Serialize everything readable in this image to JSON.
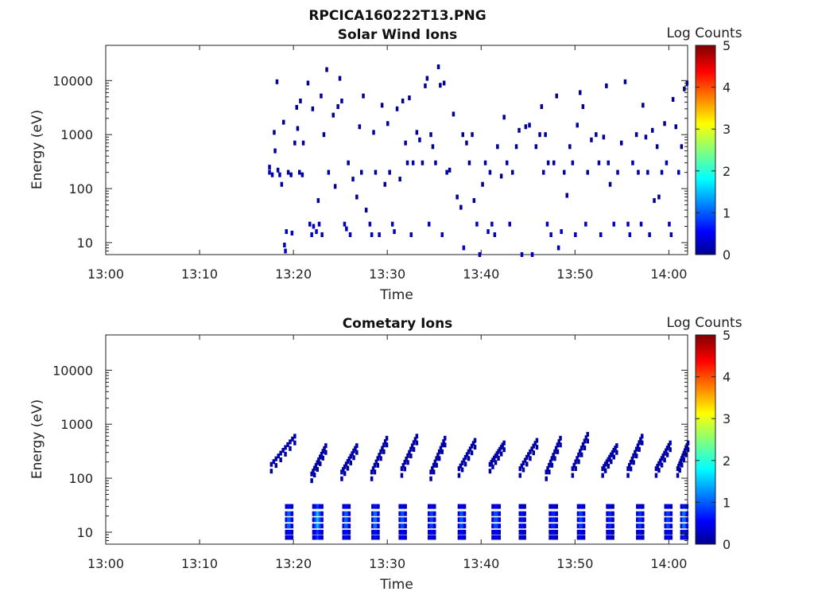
{
  "figure_title": "RPCICA160222T13.PNG",
  "chart_data": [
    {
      "type": "heatmap",
      "title": "Solar Wind Ions",
      "xlabel": "Time",
      "ylabel": "Energy (eV)",
      "x_ticks": [
        "13:00",
        "13:10",
        "13:20",
        "13:30",
        "13:40",
        "13:50",
        "14:00"
      ],
      "y_ticks": [
        "10",
        "100",
        "1000",
        "10000"
      ],
      "y_scale": "log",
      "x_range_min": [
        0,
        62
      ],
      "y_range_ev": [
        6,
        45000
      ],
      "colorbar": {
        "label": "Log Counts",
        "ticks": [
          "0",
          "1",
          "2",
          "3",
          "4",
          "5"
        ],
        "range": [
          0,
          5
        ],
        "colormap": "jet"
      },
      "grid": false,
      "points": [
        [
          17.3,
          250,
          0.3
        ],
        [
          17.3,
          200,
          0.3
        ],
        [
          17.6,
          180,
          0.2
        ],
        [
          17.8,
          1100,
          0.1
        ],
        [
          17.9,
          500,
          0.1
        ],
        [
          18.1,
          9500,
          0.1
        ],
        [
          18.2,
          220,
          0.2
        ],
        [
          18.4,
          180,
          0.2
        ],
        [
          18.6,
          120,
          0.1
        ],
        [
          18.8,
          1700,
          0.1
        ],
        [
          18.9,
          9,
          0.3
        ],
        [
          19.0,
          7,
          0.4
        ],
        [
          19.1,
          16,
          0.3
        ],
        [
          19.3,
          200,
          0.2
        ],
        [
          19.6,
          180,
          0.1
        ],
        [
          19.7,
          15,
          0.4
        ],
        [
          20.0,
          700,
          0.1
        ],
        [
          20.2,
          3200,
          0.1
        ],
        [
          20.3,
          1300,
          0.1
        ],
        [
          20.5,
          200,
          0.2
        ],
        [
          20.6,
          4200,
          0.1
        ],
        [
          20.8,
          180,
          0.2
        ],
        [
          20.9,
          700,
          0.1
        ],
        [
          21.4,
          9000,
          0.1
        ],
        [
          21.6,
          22,
          0.3
        ],
        [
          21.8,
          14,
          0.3
        ],
        [
          21.9,
          3000,
          0.1
        ],
        [
          22.0,
          20,
          0.3
        ],
        [
          22.3,
          16,
          0.4
        ],
        [
          22.5,
          60,
          0.1
        ],
        [
          22.6,
          22,
          0.3
        ],
        [
          22.8,
          5200,
          0.1
        ],
        [
          22.9,
          14,
          0.3
        ],
        [
          23.1,
          1000,
          0.1
        ],
        [
          23.4,
          16000,
          0.1
        ],
        [
          23.6,
          200,
          0.2
        ],
        [
          24.1,
          2300,
          0.1
        ],
        [
          24.3,
          110,
          0.1
        ],
        [
          24.6,
          3300,
          0.1
        ],
        [
          24.8,
          11000,
          0.1
        ],
        [
          25.0,
          4200,
          0.1
        ],
        [
          25.3,
          22,
          0.3
        ],
        [
          25.5,
          18,
          0.3
        ],
        [
          25.7,
          300,
          0.1
        ],
        [
          25.9,
          14,
          0.3
        ],
        [
          26.2,
          150,
          0.1
        ],
        [
          26.6,
          70,
          0.1
        ],
        [
          26.9,
          1400,
          0.1
        ],
        [
          27.1,
          200,
          0.1
        ],
        [
          27.3,
          5200,
          0.1
        ],
        [
          27.6,
          40,
          0.1
        ],
        [
          28.0,
          22,
          0.3
        ],
        [
          28.2,
          14,
          0.3
        ],
        [
          28.4,
          1100,
          0.1
        ],
        [
          28.6,
          200,
          0.1
        ],
        [
          29.0,
          14,
          0.3
        ],
        [
          29.3,
          3500,
          0.1
        ],
        [
          29.6,
          120,
          0.1
        ],
        [
          29.9,
          1600,
          0.1
        ],
        [
          30.1,
          200,
          0.1
        ],
        [
          30.4,
          22,
          0.3
        ],
        [
          30.6,
          16,
          0.3
        ],
        [
          30.9,
          3000,
          0.1
        ],
        [
          31.2,
          150,
          0.1
        ],
        [
          31.5,
          4200,
          0.1
        ],
        [
          31.8,
          700,
          0.1
        ],
        [
          32.0,
          300,
          0.2
        ],
        [
          32.2,
          4800,
          0.1
        ],
        [
          32.4,
          14,
          0.3
        ],
        [
          32.6,
          300,
          0.2
        ],
        [
          33.0,
          1100,
          0.1
        ],
        [
          33.3,
          800,
          0.1
        ],
        [
          33.6,
          300,
          0.1
        ],
        [
          33.9,
          8000,
          0.1
        ],
        [
          34.1,
          11000,
          0.1
        ],
        [
          34.3,
          22,
          0.3
        ],
        [
          34.5,
          1000,
          0.1
        ],
        [
          34.7,
          600,
          0.1
        ],
        [
          35.0,
          300,
          0.1
        ],
        [
          35.3,
          18000,
          0.1
        ],
        [
          35.5,
          8200,
          0.1
        ],
        [
          35.7,
          14,
          0.3
        ],
        [
          35.9,
          9000,
          0.1
        ],
        [
          36.2,
          200,
          0.2
        ],
        [
          36.5,
          220,
          0.1
        ],
        [
          36.9,
          2400,
          0.1
        ],
        [
          37.3,
          70,
          0.1
        ],
        [
          37.7,
          45,
          0.1
        ],
        [
          37.9,
          1000,
          0.1
        ],
        [
          38.0,
          8,
          0.4
        ],
        [
          38.3,
          700,
          0.1
        ],
        [
          38.6,
          300,
          0.1
        ],
        [
          38.9,
          1000,
          0.1
        ],
        [
          39.1,
          60,
          0.1
        ],
        [
          39.4,
          22,
          0.3
        ],
        [
          39.7,
          6,
          0.3
        ],
        [
          40.0,
          120,
          0.1
        ],
        [
          40.3,
          300,
          0.2
        ],
        [
          40.6,
          16,
          0.3
        ],
        [
          40.8,
          200,
          0.2
        ],
        [
          41.0,
          22,
          0.3
        ],
        [
          41.3,
          14,
          0.3
        ],
        [
          41.6,
          600,
          0.1
        ],
        [
          42.0,
          170,
          0.1
        ],
        [
          42.3,
          2100,
          0.1
        ],
        [
          42.6,
          300,
          0.2
        ],
        [
          42.9,
          22,
          0.3
        ],
        [
          43.2,
          200,
          0.2
        ],
        [
          43.6,
          600,
          0.1
        ],
        [
          43.9,
          1200,
          0.1
        ],
        [
          44.2,
          6,
          0.3
        ],
        [
          44.6,
          1400,
          0.1
        ],
        [
          45.0,
          1500,
          0.1
        ],
        [
          45.3,
          6,
          0.3
        ],
        [
          45.7,
          600,
          0.1
        ],
        [
          46.1,
          1000,
          0.1
        ],
        [
          46.3,
          3300,
          0.1
        ],
        [
          46.5,
          200,
          0.2
        ],
        [
          46.7,
          1000,
          0.1
        ],
        [
          46.9,
          22,
          0.3
        ],
        [
          47.0,
          300,
          0.2
        ],
        [
          47.3,
          14,
          0.3
        ],
        [
          47.6,
          300,
          0.2
        ],
        [
          47.9,
          5200,
          0.1
        ],
        [
          48.1,
          8,
          0.3
        ],
        [
          48.4,
          16,
          0.3
        ],
        [
          48.7,
          200,
          0.2
        ],
        [
          49.0,
          75,
          0.1
        ],
        [
          49.3,
          600,
          0.1
        ],
        [
          49.6,
          300,
          0.2
        ],
        [
          49.9,
          14,
          0.3
        ],
        [
          50.1,
          1500,
          0.1
        ],
        [
          50.4,
          6000,
          0.1
        ],
        [
          50.7,
          3300,
          0.1
        ],
        [
          51.0,
          22,
          0.3
        ],
        [
          51.2,
          200,
          0.2
        ],
        [
          51.6,
          800,
          0.1
        ],
        [
          52.1,
          1000,
          0.1
        ],
        [
          52.4,
          300,
          0.2
        ],
        [
          52.6,
          14,
          0.3
        ],
        [
          52.9,
          900,
          0.1
        ],
        [
          53.2,
          8000,
          0.1
        ],
        [
          53.4,
          300,
          0.2
        ],
        [
          53.6,
          120,
          0.1
        ],
        [
          54.0,
          22,
          0.3
        ],
        [
          54.4,
          200,
          0.2
        ],
        [
          54.8,
          700,
          0.1
        ],
        [
          55.2,
          9500,
          0.1
        ],
        [
          55.5,
          22,
          0.3
        ],
        [
          55.7,
          14,
          0.3
        ],
        [
          56.0,
          300,
          0.2
        ],
        [
          56.4,
          1000,
          0.1
        ],
        [
          56.6,
          200,
          0.2
        ],
        [
          56.9,
          22,
          0.3
        ],
        [
          57.1,
          3500,
          0.1
        ],
        [
          57.4,
          900,
          0.1
        ],
        [
          57.6,
          200,
          0.2
        ],
        [
          57.8,
          14,
          0.3
        ],
        [
          58.1,
          1200,
          0.1
        ],
        [
          58.3,
          60,
          0.1
        ],
        [
          58.6,
          600,
          0.1
        ],
        [
          58.8,
          70,
          0.1
        ],
        [
          59.1,
          200,
          0.2
        ],
        [
          59.4,
          1600,
          0.1
        ],
        [
          59.6,
          300,
          0.2
        ],
        [
          59.9,
          22,
          0.3
        ],
        [
          60.1,
          14,
          0.3
        ],
        [
          60.3,
          4500,
          0.1
        ],
        [
          60.6,
          1400,
          0.1
        ],
        [
          60.9,
          200,
          0.2
        ],
        [
          61.2,
          600,
          0.1
        ],
        [
          61.5,
          7000,
          0.1
        ],
        [
          61.8,
          9000,
          0.1
        ]
      ]
    },
    {
      "type": "heatmap",
      "title": "Cometary Ions",
      "xlabel": "Time",
      "ylabel": "Energy (eV)",
      "x_ticks": [
        "13:00",
        "13:10",
        "13:20",
        "13:30",
        "13:40",
        "13:50",
        "14:00"
      ],
      "y_ticks": [
        "10",
        "100",
        "1000",
        "10000"
      ],
      "y_scale": "log",
      "x_range_min": [
        0,
        62
      ],
      "y_range_ev": [
        6,
        45000
      ],
      "colorbar": {
        "label": "Log Counts",
        "ticks": [
          "0",
          "1",
          "2",
          "3",
          "4",
          "5"
        ],
        "range": [
          0,
          5
        ],
        "colormap": "jet"
      },
      "grid": false,
      "sweeps": [
        [
          17.5,
          20.0,
          180,
          600
        ],
        [
          21.8,
          23.3,
          120,
          400
        ],
        [
          25.0,
          26.6,
          130,
          400
        ],
        [
          28.2,
          29.8,
          130,
          550
        ],
        [
          31.4,
          33.0,
          150,
          600
        ],
        [
          34.5,
          36.0,
          130,
          550
        ],
        [
          37.5,
          39.2,
          150,
          500
        ],
        [
          40.8,
          42.3,
          180,
          450
        ],
        [
          44.0,
          45.8,
          150,
          500
        ],
        [
          46.8,
          48.3,
          130,
          550
        ],
        [
          49.6,
          51.2,
          150,
          650
        ],
        [
          52.8,
          54.3,
          150,
          400
        ],
        [
          55.5,
          57.0,
          150,
          600
        ],
        [
          58.5,
          60.0,
          150,
          450
        ],
        [
          60.8,
          61.9,
          150,
          450
        ]
      ],
      "bursts": [
        [
          19.1,
          19.7,
          1.4
        ],
        [
          22.0,
          22.9,
          1.6
        ],
        [
          25.2,
          25.8,
          1.4
        ],
        [
          28.3,
          28.9,
          1.5
        ],
        [
          31.2,
          31.8,
          1.3
        ],
        [
          34.3,
          34.9,
          1.2
        ],
        [
          37.5,
          38.1,
          1.3
        ],
        [
          41.1,
          41.8,
          1.3
        ],
        [
          44.0,
          44.5,
          0.9
        ],
        [
          47.2,
          47.9,
          1.0
        ],
        [
          50.2,
          50.8,
          1.2
        ],
        [
          53.3,
          53.9,
          1.0
        ],
        [
          56.5,
          57.1,
          1.1
        ],
        [
          59.5,
          60.1,
          1.2
        ],
        [
          61.2,
          61.8,
          1.5
        ]
      ]
    }
  ]
}
